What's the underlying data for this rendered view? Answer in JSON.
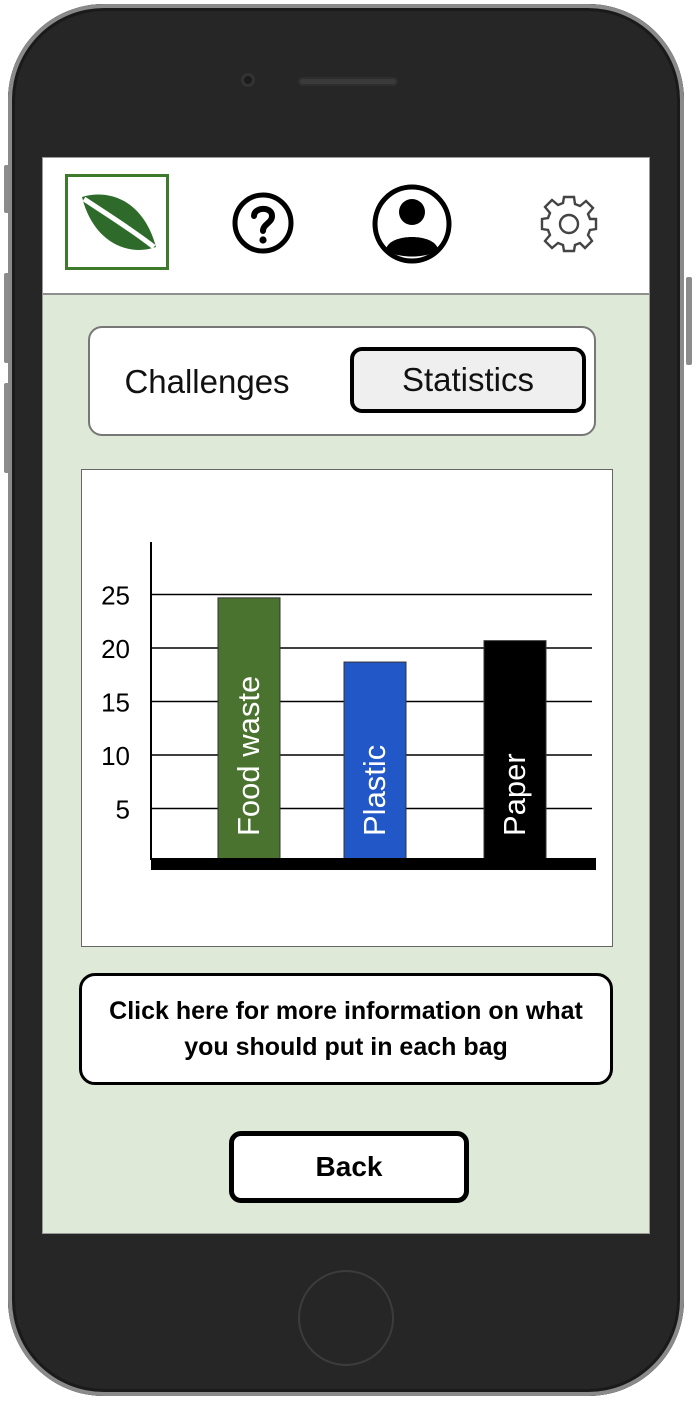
{
  "header": {
    "icons": [
      "leaf-logo-icon",
      "help-icon",
      "profile-icon",
      "settings-icon"
    ],
    "accent": "#3e7a2c"
  },
  "tabs": [
    {
      "label": "Challenges",
      "active": false
    },
    {
      "label": "Statistics",
      "active": true
    }
  ],
  "chart_data": {
    "type": "bar",
    "categories": [
      "Food waste",
      "Plastic",
      "Paper"
    ],
    "values": [
      24.5,
      18.5,
      20.5
    ],
    "colors": [
      "#4b7330",
      "#2257c7",
      "#000000"
    ],
    "yticks": [
      5,
      10,
      15,
      20,
      25
    ],
    "ylim": [
      0,
      30
    ],
    "grid": true,
    "bar_label_color": "#ffffff"
  },
  "info_button": {
    "label": "Click here for more information on what you should put in each bag"
  },
  "back_button": {
    "label": "Back"
  }
}
